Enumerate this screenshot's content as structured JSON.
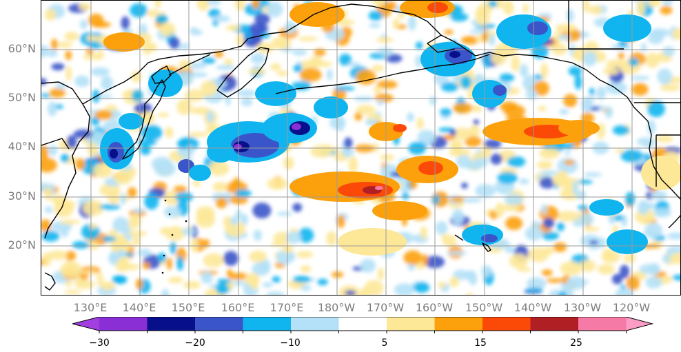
{
  "map": {
    "lat_labels": [
      "60°N",
      "50°N",
      "40°N",
      "30°N",
      "20°N"
    ],
    "lon_labels": [
      "130°E",
      "140°E",
      "150°E",
      "160°E",
      "170°E",
      "180°W",
      "170°W",
      "160°W",
      "150°W",
      "140°W",
      "130°W",
      "120°W"
    ],
    "grid_lines": true,
    "field": "anomaly"
  },
  "colorbar": {
    "levels": [
      -30,
      -25,
      -20,
      -15,
      -10,
      -5,
      5,
      10,
      15,
      20,
      25,
      30
    ],
    "colors": [
      "#8a2fd6",
      "#070f8a",
      "#3a55c9",
      "#10b5ef",
      "#b4e1f7",
      "#ffffff",
      "#fde898",
      "#fca10c",
      "#fb4a08",
      "#b01f23",
      "#f67aa6"
    ],
    "extend_low_color": "#a13fe0",
    "extend_high_color": "#fb9dc4",
    "tick_labels": [
      "−30",
      "−20",
      "−10",
      "5",
      "15",
      "25"
    ]
  },
  "colors": {
    "coastline": "#000000",
    "gridline": "#9a9a9a",
    "label_gray": "#7d7d7d"
  }
}
